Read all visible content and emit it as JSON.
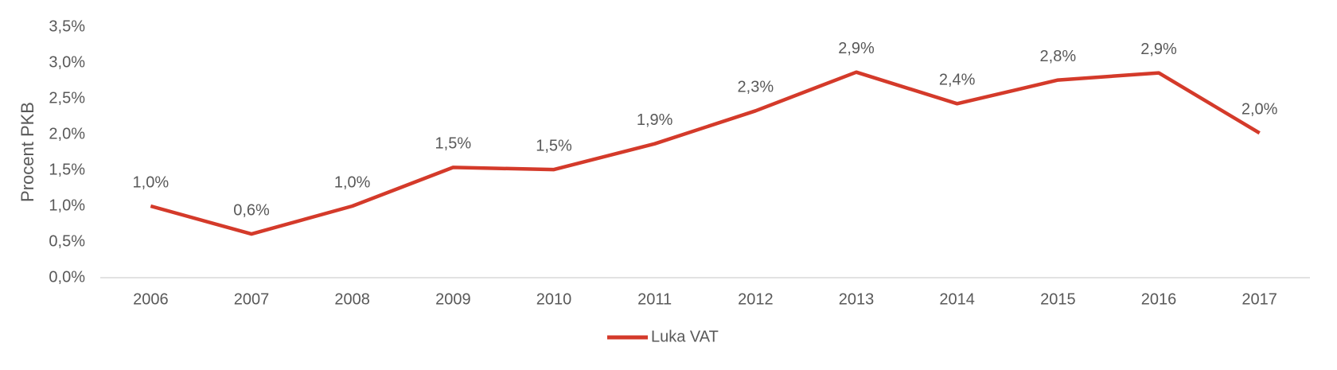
{
  "chart_data": {
    "type": "line",
    "categories": [
      "2006",
      "2007",
      "2008",
      "2009",
      "2010",
      "2011",
      "2012",
      "2013",
      "2014",
      "2015",
      "2016",
      "2017"
    ],
    "y_label": "Procent PKB",
    "series": [
      {
        "name": "Luka VAT",
        "color": "#d43a2a",
        "values": [
          1.0,
          0.61,
          1.0,
          1.54,
          1.51,
          1.87,
          2.33,
          2.87,
          2.43,
          2.76,
          2.86,
          2.02
        ],
        "value_labels": [
          "1,0%",
          "0,6%",
          "1,0%",
          "1,5%",
          "1,5%",
          "1,9%",
          "2,3%",
          "2,9%",
          "2,4%",
          "2,8%",
          "2,9%",
          "2,0%"
        ]
      }
    ],
    "ylim": [
      0,
      3.5
    ],
    "yticks": [
      {
        "value": 0,
        "label": "0,0%"
      },
      {
        "value": 0.5,
        "label": "0,5%"
      },
      {
        "value": 1,
        "label": "1,0%"
      },
      {
        "value": 1.5,
        "label": "1,5%"
      },
      {
        "value": 2,
        "label": "2,0%"
      },
      {
        "value": 2.5,
        "label": "2,5%"
      },
      {
        "value": 3,
        "label": "3,0%"
      },
      {
        "value": 3.5,
        "label": "3,5%"
      }
    ],
    "legend": "bottom"
  }
}
